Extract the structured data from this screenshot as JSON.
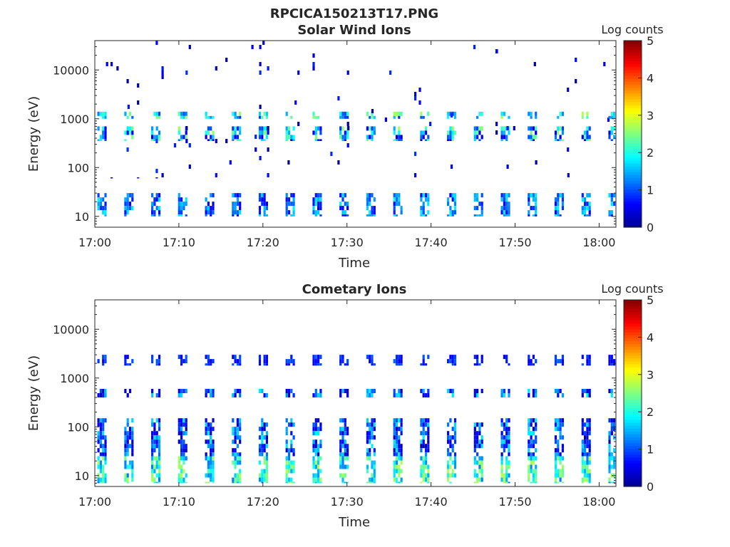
{
  "figure_title": "RPCICA150213T17.PNG",
  "colors": {
    "colormap": [
      "#00008f",
      "#0000ff",
      "#0080ff",
      "#00ffff",
      "#80ff80",
      "#ffff00",
      "#ff8000",
      "#ff0000",
      "#800000"
    ],
    "axes": "#262626",
    "background": "#ffffff"
  },
  "chart_data": [
    {
      "type": "heatmap",
      "title": "Solar Wind Ions",
      "xlabel": "Time",
      "ylabel": "Energy (eV)",
      "xlim": [
        "17:00",
        "18:02"
      ],
      "ylim": [
        6,
        40000
      ],
      "yscale": "log",
      "xticks": [
        "17:00",
        "17:10",
        "17:20",
        "17:30",
        "17:40",
        "17:50",
        "18:00"
      ],
      "yticks": [
        "10",
        "100",
        "1000",
        "10000"
      ],
      "colorbar": {
        "label": "Log counts",
        "range": [
          0,
          5
        ],
        "ticks": [
          "0",
          "1",
          "2",
          "3",
          "4",
          "5"
        ]
      },
      "grid": false,
      "sweep_period_min": 3.2,
      "bands": [
        {
          "energy_eV": [
            10,
            30
          ],
          "log_counts_typical": 1.2,
          "log_counts_max": 2.0
        },
        {
          "energy_eV": [
            350,
            700
          ],
          "log_counts_typical": 1.5,
          "log_counts_max": 3.0
        },
        {
          "energy_eV": [
            1000,
            1400
          ],
          "log_counts_typical": 1.8,
          "log_counts_max": 3.0
        },
        {
          "energy_eV": [
            60,
            40000
          ],
          "log_counts_typical": 0.4,
          "log_counts_max": 1.0
        }
      ]
    },
    {
      "type": "heatmap",
      "title": "Cometary Ions",
      "xlabel": "Time",
      "ylabel": "Energy (eV)",
      "xlim": [
        "17:00",
        "18:02"
      ],
      "ylim": [
        6,
        40000
      ],
      "yscale": "log",
      "xticks": [
        "17:00",
        "17:10",
        "17:20",
        "17:30",
        "17:40",
        "17:50",
        "18:00"
      ],
      "yticks": [
        "10",
        "100",
        "1000",
        "10000"
      ],
      "colorbar": {
        "label": "Log counts",
        "range": [
          0,
          5
        ],
        "ticks": [
          "0",
          "1",
          "2",
          "3",
          "4",
          "5"
        ]
      },
      "grid": false,
      "sweep_period_min": 3.2,
      "bands": [
        {
          "energy_eV": [
            7,
            25
          ],
          "log_counts_typical": 2.0,
          "log_counts_max": 3.0
        },
        {
          "energy_eV": [
            25,
            150
          ],
          "log_counts_typical": 1.0,
          "log_counts_max": 2.0
        },
        {
          "energy_eV": [
            400,
            600
          ],
          "log_counts_typical": 1.0,
          "log_counts_max": 2.0
        },
        {
          "energy_eV": [
            1800,
            3000
          ],
          "log_counts_typical": 0.8,
          "log_counts_max": 1.2
        }
      ]
    }
  ]
}
